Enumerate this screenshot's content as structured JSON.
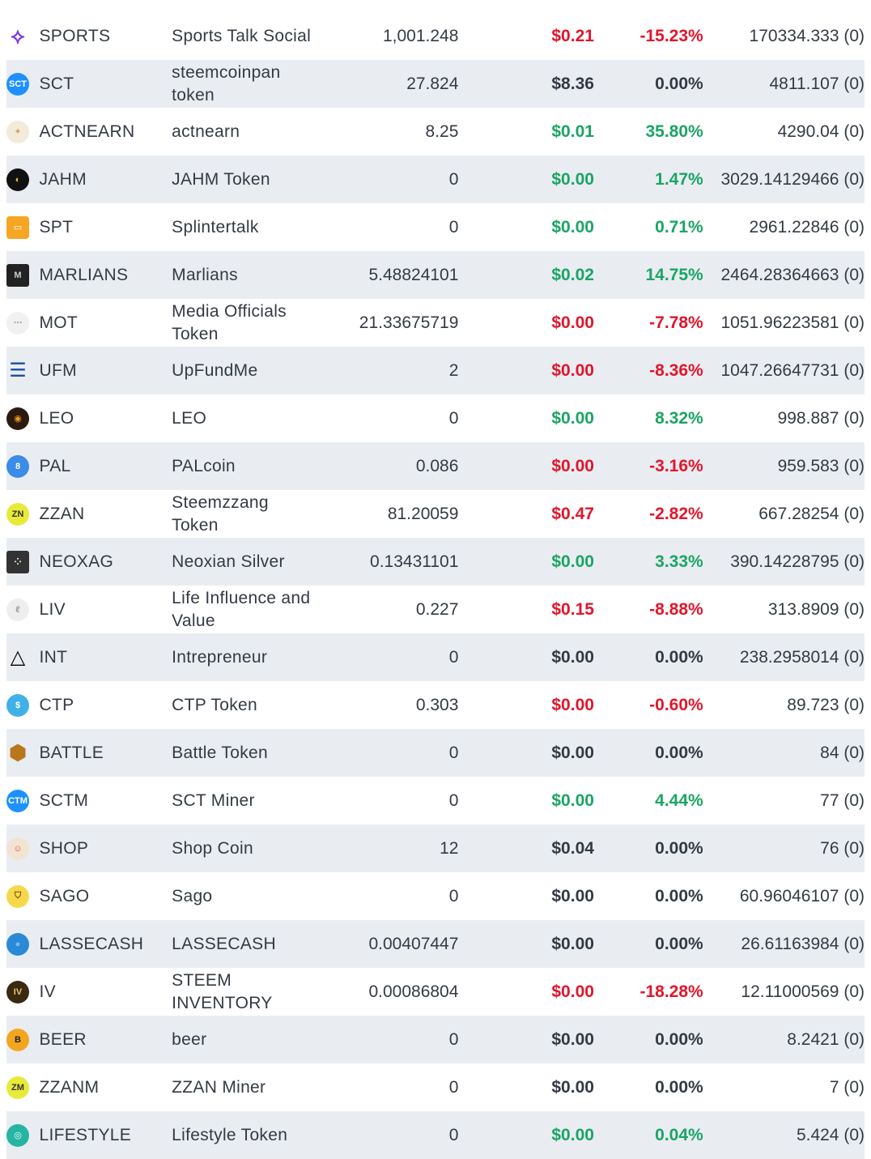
{
  "colors": {
    "negative": "#e2152b",
    "positive": "#1aa564",
    "neutral": "#333a44",
    "row_alt_bg": "#e9edf2"
  },
  "tokens": [
    {
      "symbol": "SPORTS",
      "name": "Sports Talk Social",
      "balance": "1,001.248",
      "price": "$0.21",
      "change": "-15.23%",
      "volume": "170334.333 (0)",
      "trend": "red",
      "icon": "sports-icon"
    },
    {
      "symbol": "SCT",
      "name": "steemcoinpan token",
      "balance": "27.824",
      "price": "$8.36",
      "change": "0.00%",
      "volume": "4811.107 (0)",
      "trend": "dark",
      "icon": "sct-icon"
    },
    {
      "symbol": "ACTNEARN",
      "name": "actnearn",
      "balance": "8.25",
      "price": "$0.01",
      "change": "35.80%",
      "volume": "4290.04 (0)",
      "trend": "green",
      "icon": "actnearn-icon"
    },
    {
      "symbol": "JAHM",
      "name": "JAHM Token",
      "balance": "0",
      "price": "$0.00",
      "change": "1.47%",
      "volume": "3029.14129466 (0)",
      "trend": "green",
      "icon": "jahm-icon"
    },
    {
      "symbol": "SPT",
      "name": "Splintertalk",
      "balance": "0",
      "price": "$0.00",
      "change": "0.71%",
      "volume": "2961.22846 (0)",
      "trend": "green",
      "icon": "spt-icon"
    },
    {
      "symbol": "MARLIANS",
      "name": "Marlians",
      "balance": "5.48824101",
      "price": "$0.02",
      "change": "14.75%",
      "volume": "2464.28364663 (0)",
      "trend": "green",
      "icon": "marlians-icon"
    },
    {
      "symbol": "MOT",
      "name": "Media Officials Token",
      "balance": "21.33675719",
      "price": "$0.00",
      "change": "-7.78%",
      "volume": "1051.96223581 (0)",
      "trend": "red",
      "icon": "mot-icon"
    },
    {
      "symbol": "UFM",
      "name": "UpFundMe",
      "balance": "2",
      "price": "$0.00",
      "change": "-8.36%",
      "volume": "1047.26647731 (0)",
      "trend": "red",
      "icon": "ufm-icon"
    },
    {
      "symbol": "LEO",
      "name": "LEO",
      "balance": "0",
      "price": "$0.00",
      "change": "8.32%",
      "volume": "998.887 (0)",
      "trend": "green",
      "icon": "leo-icon"
    },
    {
      "symbol": "PAL",
      "name": "PALcoin",
      "balance": "0.086",
      "price": "$0.00",
      "change": "-3.16%",
      "volume": "959.583 (0)",
      "trend": "red",
      "icon": "pal-icon"
    },
    {
      "symbol": "ZZAN",
      "name": "Steemzzang Token",
      "balance": "81.20059",
      "price": "$0.47",
      "change": "-2.82%",
      "volume": "667.28254 (0)",
      "trend": "red",
      "icon": "zzan-icon"
    },
    {
      "symbol": "NEOXAG",
      "name": "Neoxian Silver",
      "balance": "0.13431101",
      "price": "$0.00",
      "change": "3.33%",
      "volume": "390.14228795 (0)",
      "trend": "green",
      "icon": "neoxag-icon"
    },
    {
      "symbol": "LIV",
      "name": "Life Influence and Value",
      "balance": "0.227",
      "price": "$0.15",
      "change": "-8.88%",
      "volume": "313.8909 (0)",
      "trend": "red",
      "icon": "liv-icon"
    },
    {
      "symbol": "INT",
      "name": "Intrepreneur",
      "balance": "0",
      "price": "$0.00",
      "change": "0.00%",
      "volume": "238.2958014 (0)",
      "trend": "dark",
      "icon": "int-triangle-icon"
    },
    {
      "symbol": "CTP",
      "name": "CTP Token",
      "balance": "0.303",
      "price": "$0.00",
      "change": "-0.60%",
      "volume": "89.723 (0)",
      "trend": "red",
      "icon": "ctp-icon"
    },
    {
      "symbol": "BATTLE",
      "name": "Battle Token",
      "balance": "0",
      "price": "$0.00",
      "change": "0.00%",
      "volume": "84 (0)",
      "trend": "dark",
      "icon": "battle-icon"
    },
    {
      "symbol": "SCTM",
      "name": "SCT Miner",
      "balance": "0",
      "price": "$0.00",
      "change": "4.44%",
      "volume": "77 (0)",
      "trend": "green",
      "icon": "sctm-icon"
    },
    {
      "symbol": "SHOP",
      "name": "Shop Coin",
      "balance": "12",
      "price": "$0.04",
      "change": "0.00%",
      "volume": "76 (0)",
      "trend": "dark",
      "icon": "shop-icon"
    },
    {
      "symbol": "SAGO",
      "name": "Sago",
      "balance": "0",
      "price": "$0.00",
      "change": "0.00%",
      "volume": "60.96046107 (0)",
      "trend": "dark",
      "icon": "sago-icon"
    },
    {
      "symbol": "LASSECASH",
      "name": "LASSECASH",
      "balance": "0.00407447",
      "price": "$0.00",
      "change": "0.00%",
      "volume": "26.61163984 (0)",
      "trend": "dark",
      "icon": "lassecash-icon"
    },
    {
      "symbol": "IV",
      "name": "STEEM INVENTORY",
      "balance": "0.00086804",
      "price": "$0.00",
      "change": "-18.28%",
      "volume": "12.11000569 (0)",
      "trend": "red",
      "icon": "iv-icon"
    },
    {
      "symbol": "BEER",
      "name": "beer",
      "balance": "0",
      "price": "$0.00",
      "change": "0.00%",
      "volume": "8.2421 (0)",
      "trend": "dark",
      "icon": "beer-icon"
    },
    {
      "symbol": "ZZANM",
      "name": "ZZAN Miner",
      "balance": "0",
      "price": "$0.00",
      "change": "0.00%",
      "volume": "7 (0)",
      "trend": "dark",
      "icon": "zzanm-icon"
    },
    {
      "symbol": "LIFESTYLE",
      "name": "Lifestyle Token",
      "balance": "0",
      "price": "$0.00",
      "change": "0.04%",
      "volume": "5.424 (0)",
      "trend": "green",
      "icon": "lifestyle-icon"
    }
  ]
}
